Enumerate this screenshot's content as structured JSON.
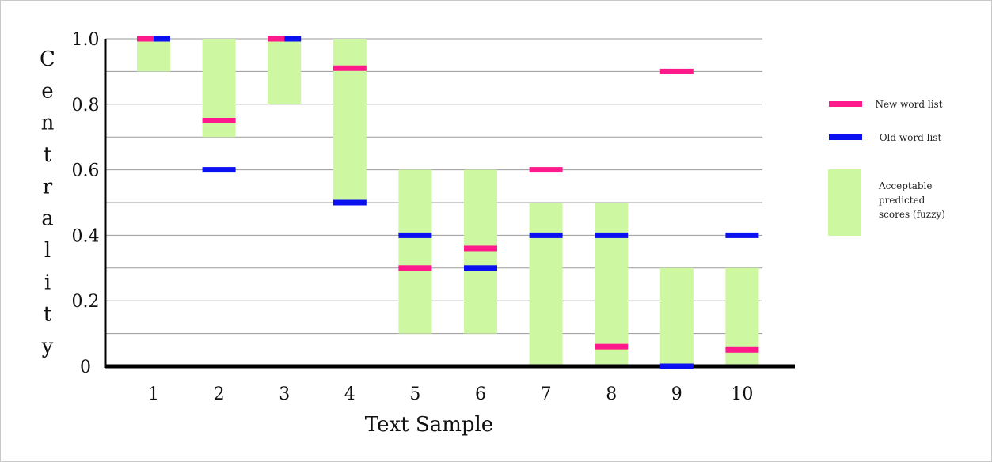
{
  "chart_data": {
    "type": "bar",
    "xlabel": "Text Sample",
    "ylabel": "Centrality",
    "ylim": [
      0,
      1.0
    ],
    "y_ticks": [
      "0",
      "0.2",
      "0.4",
      "0.6",
      "0.8",
      "1.0"
    ],
    "categories": [
      "1",
      "2",
      "3",
      "4",
      "5",
      "6",
      "7",
      "8",
      "9",
      "10"
    ],
    "acceptable_ranges": [
      [
        0.9,
        1.0
      ],
      [
        0.7,
        1.0
      ],
      [
        0.8,
        1.0
      ],
      [
        0.5,
        1.0
      ],
      [
        0.1,
        0.6
      ],
      [
        0.1,
        0.6
      ],
      [
        0.0,
        0.5
      ],
      [
        0.0,
        0.5
      ],
      [
        0.0,
        0.3
      ],
      [
        0.0,
        0.3
      ]
    ],
    "series": [
      {
        "name": "New word list",
        "color": "#ff1a8c",
        "values": [
          1.0,
          0.75,
          1.0,
          0.91,
          0.3,
          0.36,
          0.6,
          0.06,
          0.9,
          0.05
        ]
      },
      {
        "name": "Old word list",
        "color": "#0a10f0",
        "values": [
          1.0,
          0.6,
          1.0,
          0.5,
          0.4,
          0.3,
          0.4,
          0.4,
          0.0,
          0.4
        ]
      }
    ],
    "legend": {
      "position": "right",
      "items": [
        {
          "label": "New word list",
          "color": "#ff1a8c"
        },
        {
          "label": "Old word list",
          "color": "#0a10f0"
        },
        {
          "label_lines": [
            "Acceptable",
            "predicted",
            "scores (fuzzy)"
          ],
          "color": "#cdf7a0"
        }
      ]
    },
    "gridlines": true
  }
}
